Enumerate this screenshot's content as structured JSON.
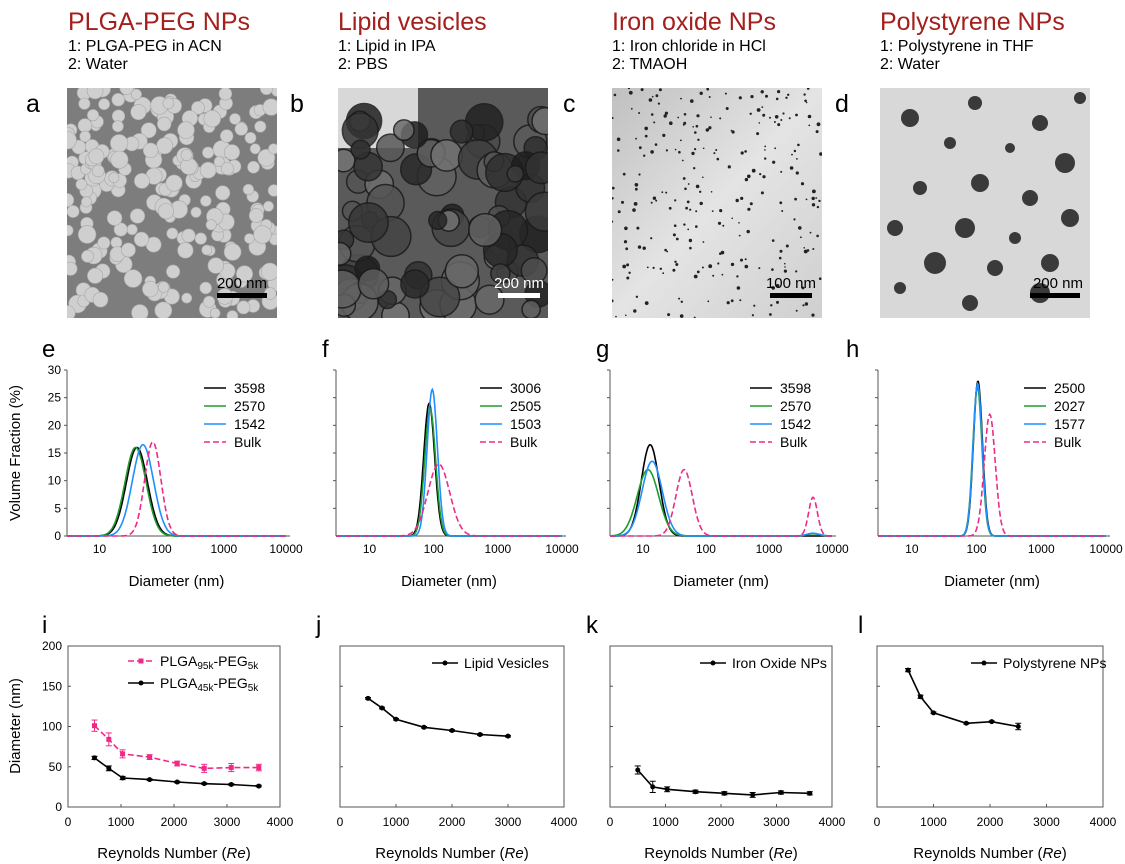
{
  "colors": {
    "title": "#a3201c",
    "black": "#000000",
    "green": "#1f9a2e",
    "blue": "#1f8fff",
    "magenta": "#ef2a86"
  },
  "columns": [
    {
      "title": "PLGA-PEG NPs",
      "line1": "1: PLGA-PEG in ACN",
      "line2": "2: Water"
    },
    {
      "title": "Lipid vesicles",
      "line1": "1: Lipid in IPA",
      "line2": "2: PBS"
    },
    {
      "title": "Iron oxide NPs",
      "line1": "1: Iron chloride in HCl",
      "line2": "2: TMAOH"
    },
    {
      "title": "Polystyrene NPs",
      "line1": "1: Polystyrene in THF",
      "line2": "2: Water"
    }
  ],
  "micrographs": [
    {
      "letter": "a",
      "scale_bar": "200 nm"
    },
    {
      "letter": "b",
      "scale_bar": "200 nm"
    },
    {
      "letter": "c",
      "scale_bar": "100 nm"
    },
    {
      "letter": "d",
      "scale_bar": "200 nm"
    }
  ],
  "chart_data": [
    {
      "panel": "e",
      "type": "line",
      "xscale": "log",
      "xlabel": "Diameter  (nm)",
      "ylabel": "Volume Fraction (%)",
      "xlim": [
        3,
        10000
      ],
      "ylim": [
        0,
        30
      ],
      "xticks": [
        "10",
        "100",
        "1000",
        "10000"
      ],
      "yticks": [
        "0",
        "5",
        "10",
        "15",
        "20",
        "25",
        "30"
      ],
      "legend": "top-right",
      "series": [
        {
          "name": "3598",
          "color": "#000000",
          "dash": false,
          "peaks": [
            {
              "center": 40,
              "height": 16,
              "width": 0.17
            }
          ]
        },
        {
          "name": "2570",
          "color": "#1f9a2e",
          "dash": false,
          "peaks": [
            {
              "center": 38,
              "height": 16,
              "width": 0.17
            }
          ]
        },
        {
          "name": "1542",
          "color": "#1f8fff",
          "dash": false,
          "peaks": [
            {
              "center": 50,
              "height": 16.5,
              "width": 0.17
            }
          ]
        },
        {
          "name": "Bulk",
          "color": "#ef2a86",
          "dash": true,
          "peaks": [
            {
              "center": 72,
              "height": 17,
              "width": 0.13
            }
          ]
        }
      ]
    },
    {
      "panel": "f",
      "type": "line",
      "xscale": "log",
      "xlabel": "Diameter  (nm)",
      "ylabel": "",
      "xlim": [
        3,
        10000
      ],
      "ylim": [
        0,
        30
      ],
      "xticks": [
        "10",
        "100",
        "1000",
        "10000"
      ],
      "yticks": [],
      "legend": "top-right",
      "series": [
        {
          "name": "3006",
          "color": "#000000",
          "dash": false,
          "peaks": [
            {
              "center": 85,
              "height": 24,
              "width": 0.085
            }
          ]
        },
        {
          "name": "2505",
          "color": "#1f9a2e",
          "dash": false,
          "peaks": [
            {
              "center": 88,
              "height": 23,
              "width": 0.085
            }
          ]
        },
        {
          "name": "1503",
          "color": "#1f8fff",
          "dash": false,
          "peaks": [
            {
              "center": 95,
              "height": 26.5,
              "width": 0.08
            }
          ]
        },
        {
          "name": "Bulk",
          "color": "#ef2a86",
          "dash": true,
          "peaks": [
            {
              "center": 120,
              "height": 13,
              "width": 0.17
            }
          ]
        }
      ]
    },
    {
      "panel": "g",
      "type": "line",
      "xscale": "log",
      "xlabel": "Diameter  (nm)",
      "ylabel": "",
      "xlim": [
        3,
        10000
      ],
      "ylim": [
        0,
        30
      ],
      "xticks": [
        "10",
        "100",
        "1000",
        "10000"
      ],
      "yticks": [],
      "legend": "top-right",
      "series": [
        {
          "name": "3598",
          "color": "#000000",
          "dash": false,
          "peaks": [
            {
              "center": 13,
              "height": 16.5,
              "width": 0.14
            }
          ]
        },
        {
          "name": "2570",
          "color": "#1f9a2e",
          "dash": false,
          "peaks": [
            {
              "center": 12,
              "height": 12,
              "width": 0.17
            },
            {
              "center": 5000,
              "height": 0.4,
              "width": 0.1
            }
          ]
        },
        {
          "name": "1542",
          "color": "#1f8fff",
          "dash": false,
          "peaks": [
            {
              "center": 14,
              "height": 13.5,
              "width": 0.16
            },
            {
              "center": 5000,
              "height": 0.5,
              "width": 0.1
            }
          ]
        },
        {
          "name": "Bulk",
          "color": "#ef2a86",
          "dash": true,
          "peaks": [
            {
              "center": 45,
              "height": 12,
              "width": 0.13
            },
            {
              "center": 5000,
              "height": 7,
              "width": 0.07
            }
          ]
        }
      ]
    },
    {
      "panel": "h",
      "type": "line",
      "xscale": "log",
      "xlabel": "Diameter  (nm)",
      "ylabel": "",
      "xlim": [
        3,
        10000
      ],
      "ylim": [
        0,
        30
      ],
      "xticks": [
        "10",
        "100",
        "1000",
        "10000"
      ],
      "yticks": [],
      "legend": "top-right",
      "series": [
        {
          "name": "2500",
          "color": "#000000",
          "dash": false,
          "peaks": [
            {
              "center": 105,
              "height": 28,
              "width": 0.07
            }
          ]
        },
        {
          "name": "2027",
          "color": "#1f9a2e",
          "dash": false,
          "peaks": [
            {
              "center": 103,
              "height": 27,
              "width": 0.07
            }
          ]
        },
        {
          "name": "1577",
          "color": "#1f8fff",
          "dash": false,
          "peaks": [
            {
              "center": 104,
              "height": 27.5,
              "width": 0.07
            }
          ]
        },
        {
          "name": "Bulk",
          "color": "#ef2a86",
          "dash": true,
          "peaks": [
            {
              "center": 160,
              "height": 22,
              "width": 0.085
            }
          ]
        }
      ]
    },
    {
      "panel": "i",
      "type": "line",
      "xlabel": "Reynolds Number (",
      "xlabel_italic": "Re",
      "xlabel_end": ")",
      "ylabel": "Diameter  (nm)",
      "xlim": [
        0,
        4000
      ],
      "ylim": [
        0,
        200
      ],
      "xticks": [
        "0",
        "1000",
        "2000",
        "3000",
        "4000"
      ],
      "yticks": [
        "0",
        "50",
        "100",
        "150",
        "200"
      ],
      "legend": "top-right",
      "series": [
        {
          "name_parts": [
            "PLGA",
            "95k",
            "-PEG",
            "5k"
          ],
          "color": "#ef2a86",
          "dash": true,
          "marker": "square",
          "x": [
            500,
            770,
            1030,
            1540,
            2060,
            2570,
            3080,
            3600
          ],
          "y": [
            101,
            84,
            66,
            62,
            54,
            48,
            49,
            49
          ],
          "err": [
            7,
            8,
            5,
            3,
            3,
            5,
            5,
            4
          ]
        },
        {
          "name_parts": [
            "PLGA",
            "45k",
            "-PEG",
            "5k"
          ],
          "color": "#000000",
          "dash": false,
          "marker": "circle",
          "x": [
            500,
            770,
            1030,
            1540,
            2060,
            2570,
            3080,
            3600
          ],
          "y": [
            61,
            48,
            36,
            34,
            31,
            29,
            28,
            26
          ],
          "err": [
            2,
            3,
            2,
            1,
            1,
            1,
            1,
            1
          ]
        }
      ]
    },
    {
      "panel": "j",
      "type": "line",
      "xlabel": "Reynolds Number (",
      "xlabel_italic": "Re",
      "xlabel_end": ")",
      "ylabel": "",
      "xlim": [
        0,
        4000
      ],
      "ylim": [
        0,
        200
      ],
      "xticks": [
        "0",
        "1000",
        "2000",
        "3000",
        "4000"
      ],
      "yticks": [],
      "legend": "top-right",
      "series": [
        {
          "name": "Lipid Vesicles",
          "color": "#000000",
          "dash": false,
          "marker": "circle",
          "x": [
            500,
            750,
            1000,
            1500,
            2000,
            2500,
            3000
          ],
          "y": [
            135,
            123,
            109,
            99,
            95,
            90,
            88
          ],
          "err": [
            1,
            1,
            1,
            1,
            1,
            1,
            1
          ]
        }
      ]
    },
    {
      "panel": "k",
      "type": "line",
      "xlabel": "Reynolds Number (",
      "xlabel_italic": "Re",
      "xlabel_end": ")",
      "ylabel": "",
      "xlim": [
        0,
        4000
      ],
      "ylim": [
        0,
        200
      ],
      "xticks": [
        "0",
        "1000",
        "2000",
        "3000",
        "4000"
      ],
      "yticks": [],
      "legend": "top-right",
      "series": [
        {
          "name": "Iron Oxide NPs",
          "color": "#000000",
          "dash": false,
          "marker": "circle",
          "x": [
            500,
            770,
            1030,
            1540,
            2060,
            2570,
            3080,
            3600
          ],
          "y": [
            46,
            25,
            22,
            19,
            17,
            15,
            18,
            17
          ],
          "err": [
            5,
            7,
            3,
            2,
            2,
            3,
            2,
            2
          ]
        }
      ]
    },
    {
      "panel": "l",
      "type": "line",
      "xlabel": "Reynolds Number (",
      "xlabel_italic": "Re",
      "xlabel_end": ")",
      "ylabel": "",
      "xlim": [
        0,
        4000
      ],
      "ylim": [
        0,
        200
      ],
      "xticks": [
        "0",
        "1000",
        "2000",
        "3000",
        "4000"
      ],
      "yticks": [],
      "legend": "top-right",
      "series": [
        {
          "name": "Polystyrene NPs",
          "color": "#000000",
          "dash": false,
          "marker": "circle",
          "x": [
            550,
            770,
            1000,
            1580,
            2030,
            2500
          ],
          "y": [
            170,
            137,
            117,
            104,
            106,
            100
          ],
          "err": [
            2,
            2,
            1,
            1,
            1,
            4
          ]
        }
      ]
    }
  ]
}
